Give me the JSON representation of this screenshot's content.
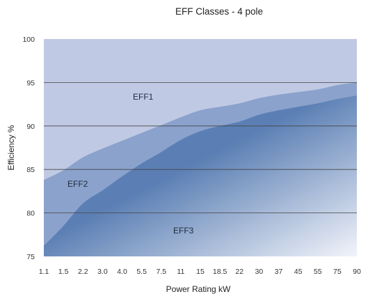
{
  "chart_data": {
    "type": "area",
    "title": "EFF Classes - 4 pole",
    "xlabel": "Power Rating kW",
    "ylabel": "Efficiency %",
    "ylim": [
      75,
      100
    ],
    "yticks": [
      75,
      80,
      85,
      90,
      95,
      100
    ],
    "grid": true,
    "categories": [
      "1.1",
      "1.5",
      "2.2",
      "3.0",
      "4.0",
      "5.5",
      "7.5",
      "11",
      "15",
      "18.5",
      "22",
      "30",
      "37",
      "45",
      "55",
      "75",
      "90"
    ],
    "series": [
      {
        "name": "EFF1",
        "values": [
          83.8,
          84.9,
          86.4,
          87.4,
          88.3,
          89.2,
          90.1,
          91.0,
          91.8,
          92.2,
          92.6,
          93.2,
          93.6,
          93.9,
          94.2,
          94.7,
          95.0
        ]
      },
      {
        "name": "EFF2",
        "values": [
          76.2,
          78.5,
          81.1,
          82.6,
          84.2,
          85.7,
          87.0,
          88.4,
          89.4,
          90.0,
          90.5,
          91.3,
          91.8,
          92.2,
          92.6,
          93.1,
          93.5
        ]
      }
    ],
    "region_labels": [
      "EFF1",
      "EFF2",
      "EFF3"
    ],
    "colors": {
      "background": "#c0c9e3",
      "eff2_band": "#8aa2cc",
      "eff3_band": "#5b7fb4",
      "eff3_fade": "#f2f4fa",
      "gridline": "#444444"
    }
  }
}
